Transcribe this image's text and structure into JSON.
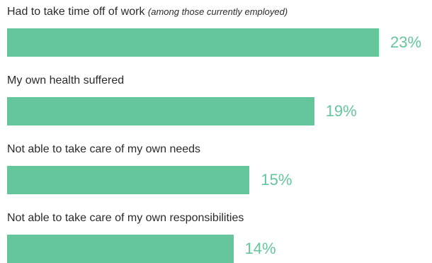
{
  "chart_data": {
    "type": "bar",
    "orientation": "horizontal",
    "bar_color": "#66c69b",
    "value_label_color": "#66c69b",
    "xlim": [
      0,
      25
    ],
    "grid": false,
    "categories": [
      "Had to take time off of work",
      "My own health suffered",
      "Not able to take care of my own needs",
      "Not able to take care of my own responsibilities"
    ],
    "category_notes": [
      "(among those currently employed)",
      "",
      "",
      ""
    ],
    "values": [
      23,
      19,
      15,
      14
    ],
    "value_labels": [
      "23%",
      "19%",
      "15%",
      "14%"
    ]
  }
}
